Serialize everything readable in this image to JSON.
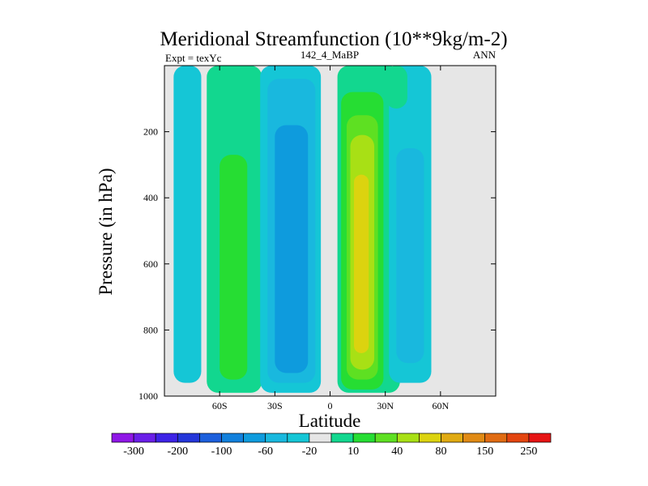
{
  "chart_data": {
    "type": "heatmap",
    "title": "Meridional Streamfunction (10**9kg/m-2)",
    "left_string": "Expt = texYc",
    "center_string": "142_4_MaBP",
    "right_string": "ANN",
    "xlabel": "Latitude",
    "ylabel": "Pressure (in hPa)",
    "xlim": [
      -90,
      90
    ],
    "ylim": [
      0,
      1000
    ],
    "y_reversed": true,
    "x_ticks": [
      -60,
      -30,
      0,
      30,
      60
    ],
    "x_tick_labels": [
      "60S",
      "30S",
      "0",
      "30N",
      "60N"
    ],
    "y_ticks": [
      200,
      400,
      600,
      800,
      1000
    ],
    "y_tick_labels": [
      "200",
      "400",
      "600",
      "800",
      "1000"
    ],
    "background_color": "#e6e6e6",
    "colorbar": {
      "colors": [
        "#8f17e6",
        "#6a1fe8",
        "#3d23e6",
        "#2436d9",
        "#1c5fdc",
        "#1180dc",
        "#0e9bdd",
        "#19b8de",
        "#15c6d6",
        "#e6e6e6",
        "#12d78f",
        "#26dd33",
        "#5ee022",
        "#a8e015",
        "#dcd30f",
        "#e0aa12",
        "#e08a14",
        "#e06b12",
        "#e3450f",
        "#e61414"
      ],
      "labels": [
        "-300",
        "-200",
        "-100",
        "-60",
        "-20",
        "10",
        "40",
        "80",
        "150",
        "250"
      ],
      "label_boundary_index": [
        1,
        3,
        5,
        7,
        9,
        11,
        13,
        15,
        17,
        19
      ]
    },
    "regions": [
      {
        "name": "sh-polar-weak-negative",
        "color": "#15c6d6",
        "level": "-10 to 0",
        "lat": [
          -85,
          -70
        ],
        "p": [
          0,
          960
        ]
      },
      {
        "name": "sh-ferrel-outer",
        "color": "#12d78f",
        "level": "0 to 10",
        "lat": [
          -67,
          -37
        ],
        "p": [
          0,
          990
        ]
      },
      {
        "name": "sh-ferrel-core",
        "color": "#26dd33",
        "level": "10 to 20",
        "lat": [
          -60,
          -45
        ],
        "p": [
          270,
          950
        ]
      },
      {
        "name": "sh-hadley-outer",
        "color": "#15c6d6",
        "level": "-10 to 0",
        "lat": [
          -38,
          -5
        ],
        "p": [
          0,
          990
        ]
      },
      {
        "name": "sh-hadley-mid",
        "color": "#19b8de",
        "level": "-20 to -10",
        "lat": [
          -34,
          -8
        ],
        "p": [
          40,
          960
        ]
      },
      {
        "name": "sh-hadley-core",
        "color": "#0e9bdd",
        "level": "-40 to -20",
        "lat": [
          -30,
          -12
        ],
        "p": [
          180,
          930
        ]
      },
      {
        "name": "nh-hadley-outer",
        "color": "#12d78f",
        "level": "0 to 10",
        "lat": [
          4,
          38
        ],
        "p": [
          0,
          990
        ]
      },
      {
        "name": "nh-hadley-l2",
        "color": "#26dd33",
        "level": "10 to 20",
        "lat": [
          6,
          29
        ],
        "p": [
          80,
          980
        ]
      },
      {
        "name": "nh-hadley-l3",
        "color": "#5ee022",
        "level": "20 to 40",
        "lat": [
          9,
          26
        ],
        "p": [
          150,
          950
        ]
      },
      {
        "name": "nh-hadley-l4",
        "color": "#a8e015",
        "level": "40 to 60",
        "lat": [
          11,
          24
        ],
        "p": [
          210,
          920
        ]
      },
      {
        "name": "nh-hadley-core",
        "color": "#dcd30f",
        "level": "60 to 80",
        "lat": [
          13,
          21
        ],
        "p": [
          330,
          870
        ]
      },
      {
        "name": "nh-ferrel-outer",
        "color": "#15c6d6",
        "level": "-10 to 0",
        "lat": [
          32,
          55
        ],
        "p": [
          0,
          960
        ]
      },
      {
        "name": "nh-ferrel-core",
        "color": "#19b8de",
        "level": "-20 to -10",
        "lat": [
          36,
          51
        ],
        "p": [
          250,
          900
        ]
      },
      {
        "name": "nh-polar-weak-positive",
        "color": "#12d78f",
        "level": "0 to 10",
        "lat": [
          30,
          42
        ],
        "p": [
          0,
          130
        ]
      }
    ]
  }
}
